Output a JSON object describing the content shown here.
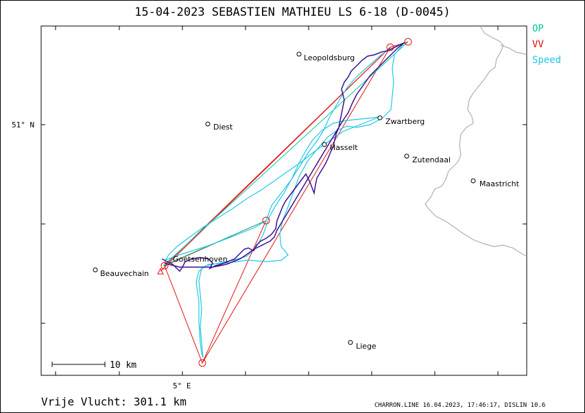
{
  "title": "15-04-2023   SEBASTIEN MATHIEU   LS 6-18 (D-0045)",
  "legend": {
    "op": "OP",
    "vv": "VV",
    "speed": "Speed"
  },
  "axes": {
    "lat_label": "51° N",
    "lon_label": "5° E"
  },
  "scale_bar": {
    "label": "10  km"
  },
  "places": [
    {
      "name": "Leopoldsburg"
    },
    {
      "name": "Diest"
    },
    {
      "name": "Zwartberg"
    },
    {
      "name": "Hasselt"
    },
    {
      "name": "Zutendaal"
    },
    {
      "name": "Maastricht"
    },
    {
      "name": "Beauvechain"
    },
    {
      "name": "Goetsenhoven"
    },
    {
      "name": "Liege"
    }
  ],
  "flight_summary": "Vrije Vlucht:  301.1 km",
  "footer_info": "CHARRON.LINE 16.04.2023, 17:46:17, DISLIN 10.6",
  "colors": {
    "op": "#00c8a0",
    "vv": "#e01010",
    "speed": "#1ec8e6",
    "track": "#3a1090",
    "border": "#b0b0b0"
  }
}
